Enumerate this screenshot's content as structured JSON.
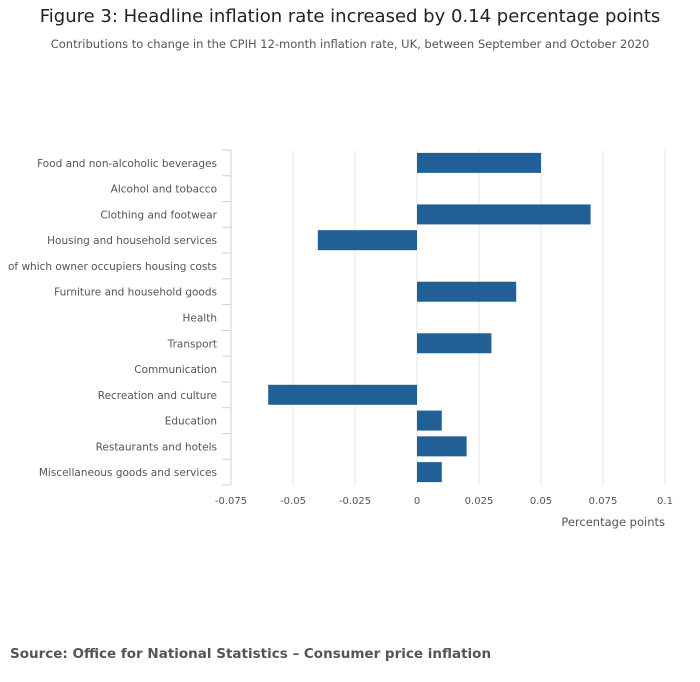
{
  "figure": {
    "title": "Figure 3: Headline inflation rate increased by 0.14 percentage points",
    "subtitle": "Contributions to change in the CPIH 12-month inflation rate, UK, between September and October 2020",
    "source": "Source: Office for National Statistics – Consumer price inflation"
  },
  "chart_data": {
    "type": "bar",
    "orientation": "horizontal",
    "title": "Figure 3: Headline inflation rate increased by 0.14 percentage points",
    "subtitle": "Contributions to change in the CPIH 12-month inflation rate, UK, between September and October 2020",
    "categories": [
      "Food and non-alcoholic beverages",
      "Alcohol and tobacco",
      "Clothing and footwear",
      "Housing and household services",
      "of which owner occupiers housing costs",
      "Furniture and household goods",
      "Health",
      "Transport",
      "Communication",
      "Recreation and culture",
      "Education",
      "Restaurants and hotels",
      "Miscellaneous goods and services"
    ],
    "values": [
      0.05,
      0,
      0.07,
      -0.04,
      0,
      0.04,
      0,
      0.03,
      0,
      -0.06,
      0.01,
      0.02,
      0.01
    ],
    "xlabel": "Percentage points",
    "ylabel": "",
    "xlim": [
      -0.075,
      0.1
    ],
    "xticks": [
      -0.075,
      -0.05,
      -0.025,
      0,
      0.025,
      0.05,
      0.075,
      0.1
    ],
    "xtick_labels": [
      "-0.075",
      "-0.05",
      "-0.025",
      "0",
      "0.025",
      "0.05",
      "0.075",
      "0.1"
    ],
    "grid": true,
    "bar_color": "#206095"
  },
  "colors": {
    "bar": "#206095",
    "grid": "#e6e6e6",
    "axis": "#d0d0d0",
    "label": "#555555"
  }
}
